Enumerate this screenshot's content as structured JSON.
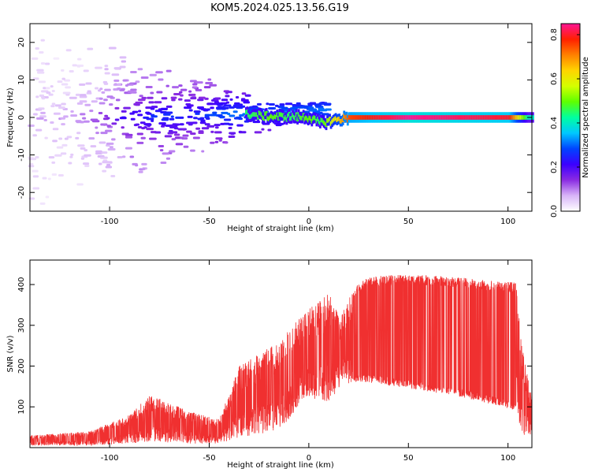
{
  "figure": {
    "title": "KOM5.2024.025.13.56.G19"
  },
  "chart_data": [
    {
      "type": "heatmap",
      "title": "",
      "xlabel": "Height of straight line (km)",
      "ylabel": "Frequency (Hz)",
      "xlim": [
        -140,
        112
      ],
      "ylim": [
        -25,
        25
      ],
      "xticks": [
        -100,
        -50,
        0,
        50,
        100
      ],
      "yticks": [
        -20,
        -10,
        0,
        10,
        20
      ],
      "colorbar": {
        "label": "Normalized spectral amplitude",
        "range": [
          0,
          0.85
        ],
        "ticks": [
          "0.0",
          "0.2",
          "0.4",
          "0.6",
          "0.8"
        ],
        "tick_values": [
          0.0,
          0.2,
          0.4,
          0.6,
          0.8
        ],
        "colormap": [
          "#ffffff",
          "#d8b4f8",
          "#8a2be2",
          "#3b00ff",
          "#0044ff",
          "#00c8ff",
          "#00ffa0",
          "#5eff00",
          "#d4ff00",
          "#ffd400",
          "#ff8000",
          "#ff2000",
          "#ff1493"
        ]
      },
      "ridge": [
        {
          "x": -30,
          "y": 0.8,
          "amp": 0.45
        },
        {
          "x": -20,
          "y": 0.2,
          "amp": 0.5
        },
        {
          "x": -10,
          "y": 0.2,
          "amp": 0.45
        },
        {
          "x": 0,
          "y": 0.0,
          "amp": 0.5
        },
        {
          "x": 5,
          "y": -1.5,
          "amp": 0.45
        },
        {
          "x": 20,
          "y": 0.0,
          "amp": 0.75
        },
        {
          "x": 50,
          "y": 0.0,
          "amp": 0.85
        },
        {
          "x": 100,
          "y": 0.0,
          "amp": 0.8
        },
        {
          "x": 110,
          "y": 0.0,
          "amp": 0.4
        }
      ],
      "scatter_clusters": [
        {
          "x": -130,
          "y": 10,
          "amp": 0.05
        },
        {
          "x": -120,
          "y": -15,
          "amp": 0.06
        },
        {
          "x": -110,
          "y": 5,
          "amp": 0.08
        },
        {
          "x": -100,
          "y": -5,
          "amp": 0.12
        },
        {
          "x": -90,
          "y": -2,
          "amp": 0.18
        },
        {
          "x": -80,
          "y": 0,
          "amp": 0.2
        },
        {
          "x": -70,
          "y": 2,
          "amp": 0.22
        },
        {
          "x": -60,
          "y": 0,
          "amp": 0.2
        },
        {
          "x": -50,
          "y": 2,
          "amp": 0.22
        },
        {
          "x": -40,
          "y": 3,
          "amp": 0.25
        }
      ]
    },
    {
      "type": "line",
      "title": "",
      "xlabel": "Height of straight line (km)",
      "ylabel": "SNR (v/v)",
      "xlim": [
        -140,
        112
      ],
      "ylim": [
        0,
        460
      ],
      "xticks": [
        -100,
        -50,
        0,
        50,
        100
      ],
      "yticks": [
        100,
        200,
        300,
        400
      ],
      "color": "#f03030",
      "envelope": [
        {
          "x": -140,
          "low": 5,
          "high": 30
        },
        {
          "x": -110,
          "low": 5,
          "high": 40
        },
        {
          "x": -90,
          "low": 10,
          "high": 80
        },
        {
          "x": -80,
          "low": 15,
          "high": 130
        },
        {
          "x": -60,
          "low": 10,
          "high": 90
        },
        {
          "x": -45,
          "low": 10,
          "high": 70
        },
        {
          "x": -35,
          "low": 25,
          "high": 200
        },
        {
          "x": -15,
          "low": 40,
          "high": 260
        },
        {
          "x": -8,
          "low": 80,
          "high": 300
        },
        {
          "x": 0,
          "low": 120,
          "high": 340
        },
        {
          "x": 10,
          "low": 110,
          "high": 380
        },
        {
          "x": 16,
          "low": 150,
          "high": 320
        },
        {
          "x": 22,
          "low": 160,
          "high": 390
        },
        {
          "x": 30,
          "low": 160,
          "high": 420
        },
        {
          "x": 50,
          "low": 145,
          "high": 425
        },
        {
          "x": 70,
          "low": 130,
          "high": 420
        },
        {
          "x": 90,
          "low": 110,
          "high": 410
        },
        {
          "x": 104,
          "low": 90,
          "high": 405
        },
        {
          "x": 107,
          "low": 30,
          "high": 250
        },
        {
          "x": 112,
          "low": 30,
          "high": 120
        }
      ]
    }
  ]
}
